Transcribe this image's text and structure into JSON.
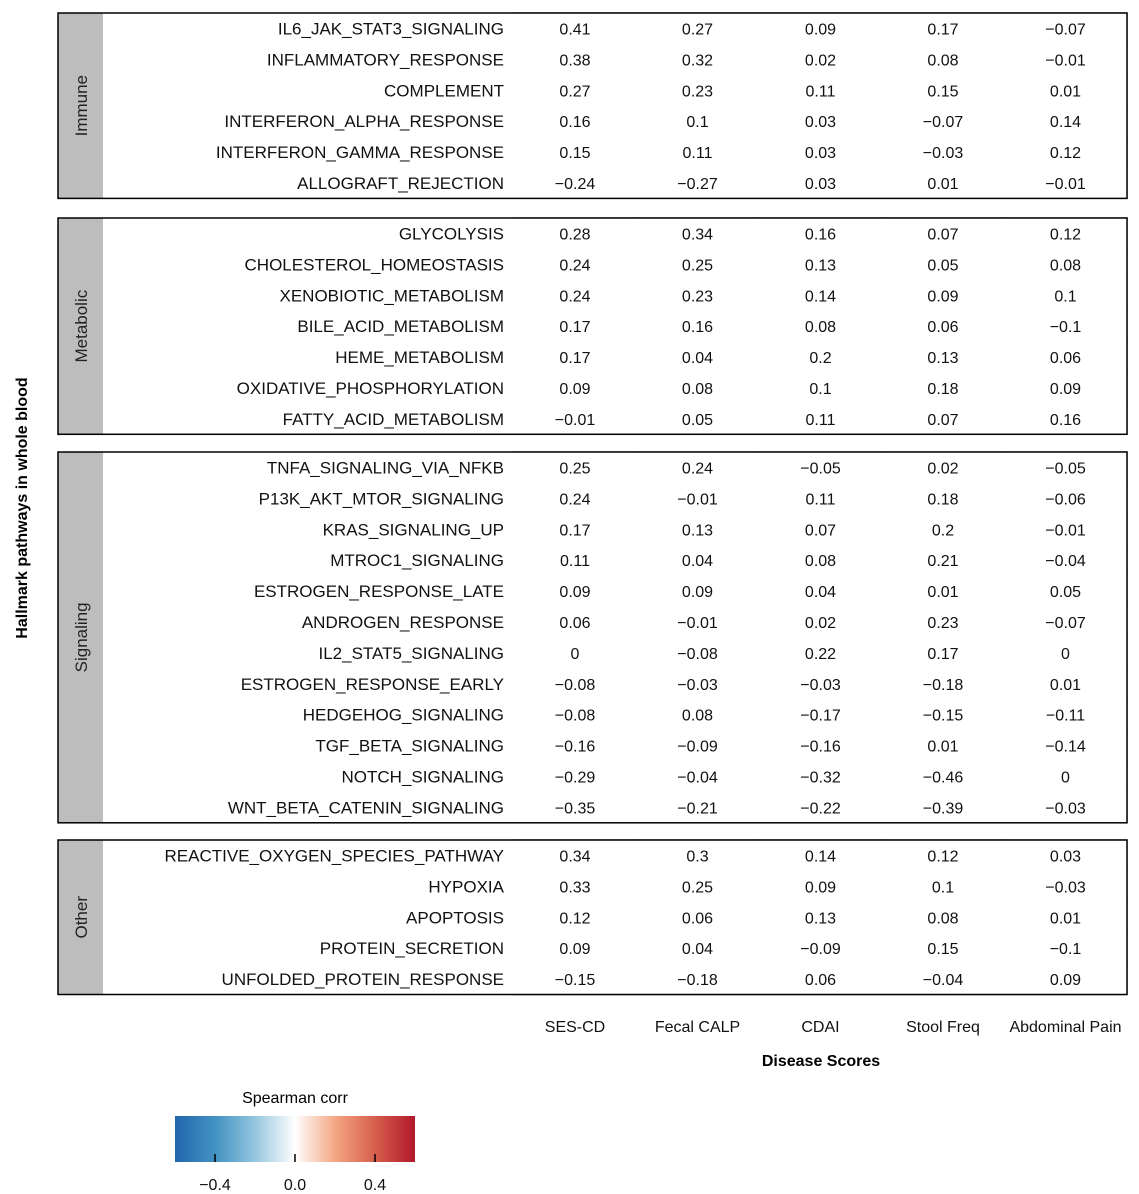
{
  "chart_data": {
    "type": "heatmap",
    "ylabel": "Hallmark pathways in whole blood",
    "xlabel": "Disease Scores",
    "columns": [
      "SES-CD",
      "Fecal CALP",
      "CDAI",
      "Stool Freq",
      "Abdominal Pain"
    ],
    "groups": [
      {
        "name": "Immune",
        "rows": [
          {
            "label": "IL6_JAK_STAT3_SIGNALING",
            "values": [
              0.41,
              0.27,
              0.09,
              0.17,
              -0.07
            ]
          },
          {
            "label": "INFLAMMATORY_RESPONSE",
            "values": [
              0.38,
              0.32,
              0.02,
              0.08,
              -0.01
            ]
          },
          {
            "label": "COMPLEMENT",
            "values": [
              0.27,
              0.23,
              0.11,
              0.15,
              0.01
            ]
          },
          {
            "label": "INTERFERON_ALPHA_RESPONSE",
            "values": [
              0.16,
              0.1,
              0.03,
              -0.07,
              0.14
            ]
          },
          {
            "label": "INTERFERON_GAMMA_RESPONSE",
            "values": [
              0.15,
              0.11,
              0.03,
              -0.03,
              0.12
            ]
          },
          {
            "label": "ALLOGRAFT_REJECTION",
            "values": [
              -0.24,
              -0.27,
              0.03,
              0.01,
              -0.01
            ]
          }
        ]
      },
      {
        "name": "Metabolic",
        "rows": [
          {
            "label": "GLYCOLYSIS",
            "values": [
              0.28,
              0.34,
              0.16,
              0.07,
              0.12
            ]
          },
          {
            "label": "CHOLESTEROL_HOMEOSTASIS",
            "values": [
              0.24,
              0.25,
              0.13,
              0.05,
              0.08
            ]
          },
          {
            "label": "XENOBIOTIC_METABOLISM",
            "values": [
              0.24,
              0.23,
              0.14,
              0.09,
              0.1
            ]
          },
          {
            "label": "BILE_ACID_METABOLISM",
            "values": [
              0.17,
              0.16,
              0.08,
              0.06,
              -0.1
            ]
          },
          {
            "label": "HEME_METABOLISM",
            "values": [
              0.17,
              0.04,
              0.2,
              0.13,
              0.06
            ]
          },
          {
            "label": "OXIDATIVE_PHOSPHORYLATION",
            "values": [
              0.09,
              0.08,
              0.1,
              0.18,
              0.09
            ]
          },
          {
            "label": "FATTY_ACID_METABOLISM",
            "values": [
              -0.01,
              0.05,
              0.11,
              0.07,
              0.16
            ]
          }
        ]
      },
      {
        "name": "Signaling",
        "rows": [
          {
            "label": "TNFA_SIGNALING_VIA_NFKB",
            "values": [
              0.25,
              0.24,
              -0.05,
              0.02,
              -0.05
            ]
          },
          {
            "label": "P13K_AKT_MTOR_SIGNALING",
            "values": [
              0.24,
              -0.01,
              0.11,
              0.18,
              -0.06
            ]
          },
          {
            "label": "KRAS_SIGNALING_UP",
            "values": [
              0.17,
              0.13,
              0.07,
              0.2,
              -0.01
            ]
          },
          {
            "label": "MTROC1_SIGNALING",
            "values": [
              0.11,
              0.04,
              0.08,
              0.21,
              -0.04
            ]
          },
          {
            "label": "ESTROGEN_RESPONSE_LATE",
            "values": [
              0.09,
              0.09,
              0.04,
              0.01,
              0.05
            ]
          },
          {
            "label": "ANDROGEN_RESPONSE",
            "values": [
              0.06,
              -0.01,
              0.02,
              0.23,
              -0.07
            ]
          },
          {
            "label": "IL2_STAT5_SIGNALING",
            "values": [
              0,
              -0.08,
              0.22,
              0.17,
              0
            ]
          },
          {
            "label": "ESTROGEN_RESPONSE_EARLY",
            "values": [
              -0.08,
              -0.03,
              -0.03,
              -0.18,
              0.01
            ]
          },
          {
            "label": "HEDGEHOG_SIGNALING",
            "values": [
              -0.08,
              0.08,
              -0.17,
              -0.15,
              -0.11
            ]
          },
          {
            "label": "TGF_BETA_SIGNALING",
            "values": [
              -0.16,
              -0.09,
              -0.16,
              0.01,
              -0.14
            ]
          },
          {
            "label": "NOTCH_SIGNALING",
            "values": [
              -0.29,
              -0.04,
              -0.32,
              -0.46,
              0
            ]
          },
          {
            "label": "WNT_BETA_CATENIN_SIGNALING",
            "values": [
              -0.35,
              -0.21,
              -0.22,
              -0.39,
              -0.03
            ]
          }
        ]
      },
      {
        "name": "Other",
        "rows": [
          {
            "label": "REACTIVE_OXYGEN_SPECIES_PATHWAY",
            "values": [
              0.34,
              0.3,
              0.14,
              0.12,
              0.03
            ]
          },
          {
            "label": "HYPOXIA",
            "values": [
              0.33,
              0.25,
              0.09,
              0.1,
              -0.03
            ]
          },
          {
            "label": "APOPTOSIS",
            "values": [
              0.12,
              0.06,
              0.13,
              0.08,
              0.01
            ]
          },
          {
            "label": "PROTEIN_SECRETION",
            "values": [
              0.09,
              0.04,
              -0.09,
              0.15,
              -0.1
            ]
          },
          {
            "label": "UNFOLDED_PROTEIN_RESPONSE",
            "values": [
              -0.15,
              -0.18,
              0.06,
              -0.04,
              0.09
            ]
          }
        ]
      }
    ],
    "legend": {
      "title": "Spearman corr",
      "range": [
        -0.6,
        0.6
      ],
      "ticks": [
        -0.4,
        0.0,
        0.4
      ],
      "tick_labels": [
        "−0.4",
        "0.0",
        "0.4"
      ],
      "placement": "bottom-left"
    },
    "colors": {
      "negative": "#2166ac",
      "mid": "#ffffff",
      "positive": "#b2182b",
      "group_strip": "#bdbdbd"
    }
  }
}
